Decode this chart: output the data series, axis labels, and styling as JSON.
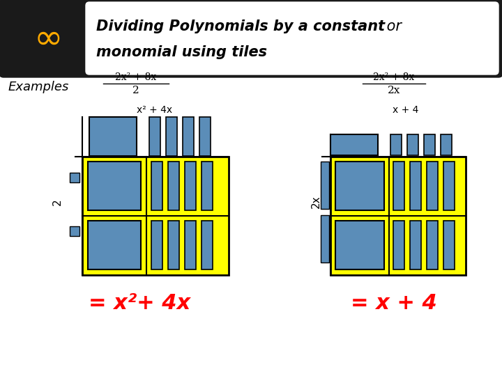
{
  "bg_color": "#ffffff",
  "header_bg": "#1a1a1a",
  "tile_yellow": "#ffff00",
  "tile_blue": "#5b8db8",
  "tile_outline": "#000000",
  "text_red": "#ff0000",
  "text_black": "#000000",
  "header_box_bg": "#ffffff",
  "examples_label": "Examples",
  "left_fraction_num": "2x² + 8x",
  "left_fraction_den": "2",
  "right_fraction_num": "2x² + 8x",
  "right_fraction_den": "2x",
  "left_label_top": "x² + 4x",
  "left_label_side": "2",
  "right_label_top": "x + 4",
  "right_label_side": "2x",
  "left_result": "= x²+ 4x",
  "right_result": "= x + 4",
  "infinity_color": "#ffaa00"
}
